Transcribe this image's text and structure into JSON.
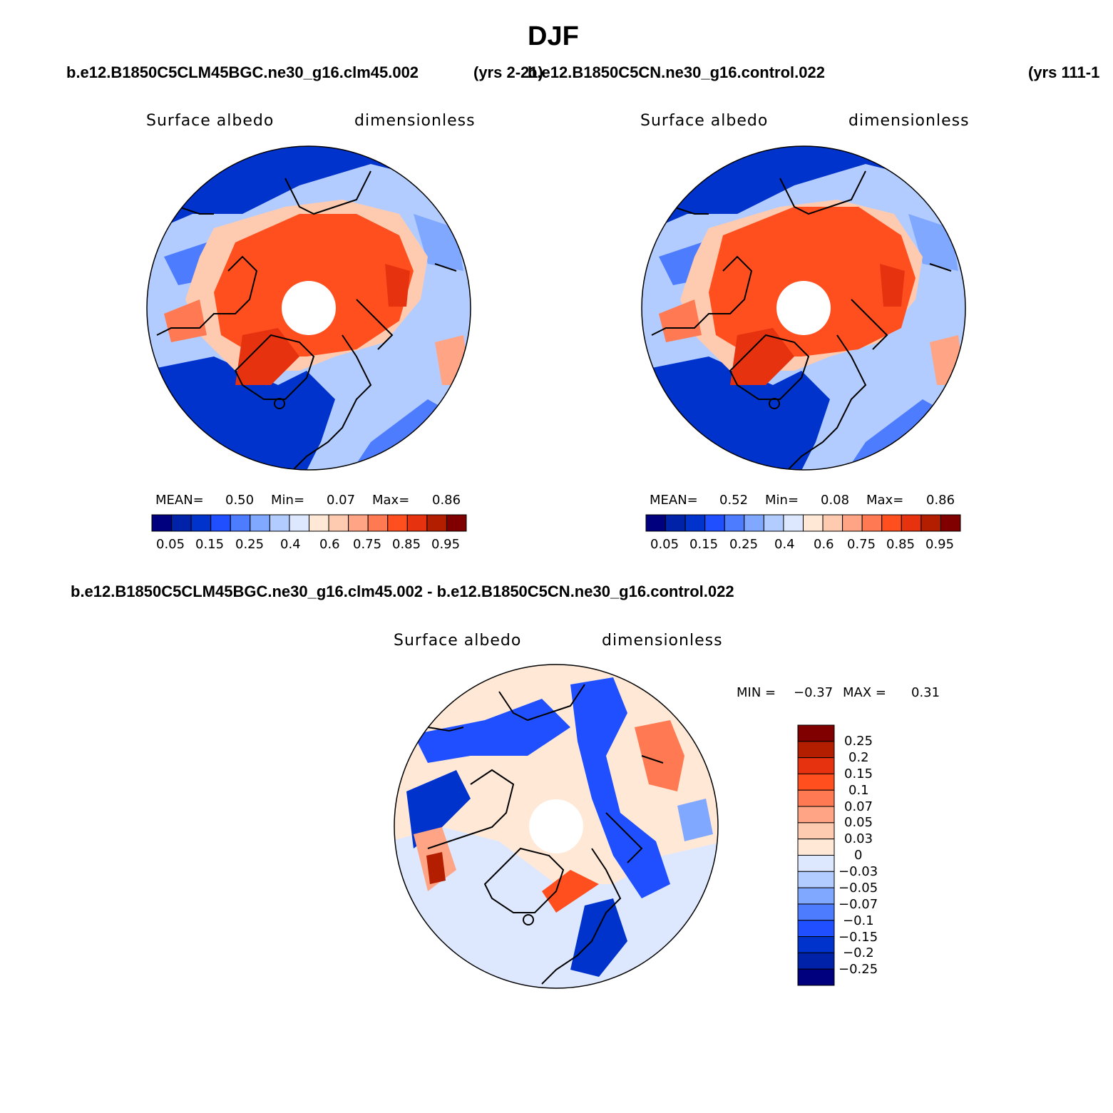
{
  "page": {
    "title": "DJF",
    "case1": "b.e12.B1850C5CLM45BGC.ne30_g16.clm45.002",
    "case1_years": "(yrs 2-21)",
    "case2": "b.e12.B1850C5CN.ne30_g16.control.022",
    "case2_years": "(yrs 111-1",
    "diff_title": "b.e12.B1850C5CLM45BGC.ne30_g16.clm45.002 - b.e12.B1850C5CN.ne30_g16.control.022"
  },
  "panels": [
    {
      "id": "case1",
      "variable": "Surface albedo",
      "units": "dimensionless",
      "mean_label": "MEAN=",
      "mean": "0.50",
      "min_label": "Min=",
      "min": "0.07",
      "max_label": "Max=",
      "max": "0.86"
    },
    {
      "id": "case2",
      "variable": "Surface albedo",
      "units": "dimensionless",
      "mean_label": "MEAN=",
      "mean": "0.52",
      "min_label": "Min=",
      "min": "0.08",
      "max_label": "Max=",
      "max": "0.86"
    },
    {
      "id": "difference",
      "variable": "Surface albedo",
      "units": "dimensionless",
      "min_label": "MIN =",
      "min": "−0.37",
      "max_label": "MAX =",
      "max": "0.31"
    }
  ],
  "colorbar_abs": {
    "colors": [
      "#00007f",
      "#0022a8",
      "#0033cc",
      "#1f4fff",
      "#4d7cff",
      "#80a8ff",
      "#b3ccff",
      "#dde8ff",
      "#ffe8d6",
      "#ffcbb0",
      "#ffa585",
      "#ff7a52",
      "#ff4f1f",
      "#e6320f",
      "#b31e00",
      "#800000"
    ],
    "ticks": [
      "0.05",
      "0.15",
      "0.25",
      "0.4",
      "0.6",
      "0.75",
      "0.85",
      "0.95"
    ]
  },
  "colorbar_diff": {
    "colors": [
      "#00007f",
      "#0022a8",
      "#0033cc",
      "#1f4fff",
      "#4d7cff",
      "#80a8ff",
      "#b3ccff",
      "#dde8ff",
      "#ffe8d6",
      "#ffcbb0",
      "#ffa585",
      "#ff7a52",
      "#ff4f1f",
      "#e6320f",
      "#b31e00",
      "#800000"
    ],
    "ticks": [
      "0.25",
      "0.2",
      "0.15",
      "0.1",
      "0.07",
      "0.05",
      "0.03",
      "0",
      "−0.03",
      "−0.05",
      "−0.07",
      "−0.1",
      "−0.15",
      "−0.2",
      "−0.25"
    ]
  }
}
